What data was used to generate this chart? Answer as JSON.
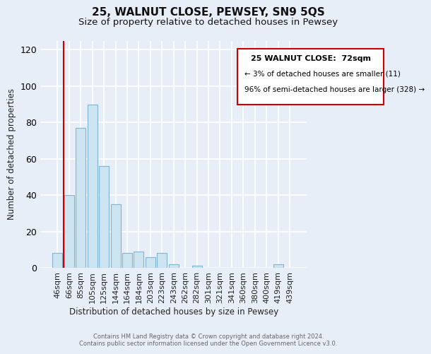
{
  "title": "25, WALNUT CLOSE, PEWSEY, SN9 5QS",
  "subtitle": "Size of property relative to detached houses in Pewsey",
  "xlabel": "Distribution of detached houses by size in Pewsey",
  "ylabel": "Number of detached properties",
  "bar_labels": [
    "46sqm",
    "66sqm",
    "85sqm",
    "105sqm",
    "125sqm",
    "144sqm",
    "164sqm",
    "184sqm",
    "203sqm",
    "223sqm",
    "243sqm",
    "262sqm",
    "282sqm",
    "301sqm",
    "321sqm",
    "341sqm",
    "360sqm",
    "380sqm",
    "400sqm",
    "419sqm",
    "439sqm"
  ],
  "bar_values": [
    8,
    40,
    77,
    90,
    56,
    35,
    8,
    9,
    6,
    8,
    2,
    0,
    1,
    0,
    0,
    0,
    0,
    0,
    0,
    2,
    0
  ],
  "bar_color": "#cce4f0",
  "bar_edge_color": "#7fb4d4",
  "vline_color": "#cc0000",
  "ylim": [
    0,
    125
  ],
  "yticks": [
    0,
    20,
    40,
    60,
    80,
    100,
    120
  ],
  "annotation_title": "25 WALNUT CLOSE:  72sqm",
  "annotation_line1": "← 3% of detached houses are smaller (11)",
  "annotation_line2": "96% of semi-detached houses are larger (328) →",
  "annotation_box_facecolor": "#ffffff",
  "annotation_box_edge": "#cc0000",
  "footer_line1": "Contains HM Land Registry data © Crown copyright and database right 2024.",
  "footer_line2": "Contains public sector information licensed under the Open Government Licence v3.0.",
  "background_color": "#e8eef8",
  "plot_bg_color": "#e8eef8",
  "grid_color": "#ffffff",
  "title_fontsize": 11,
  "subtitle_fontsize": 9.5
}
